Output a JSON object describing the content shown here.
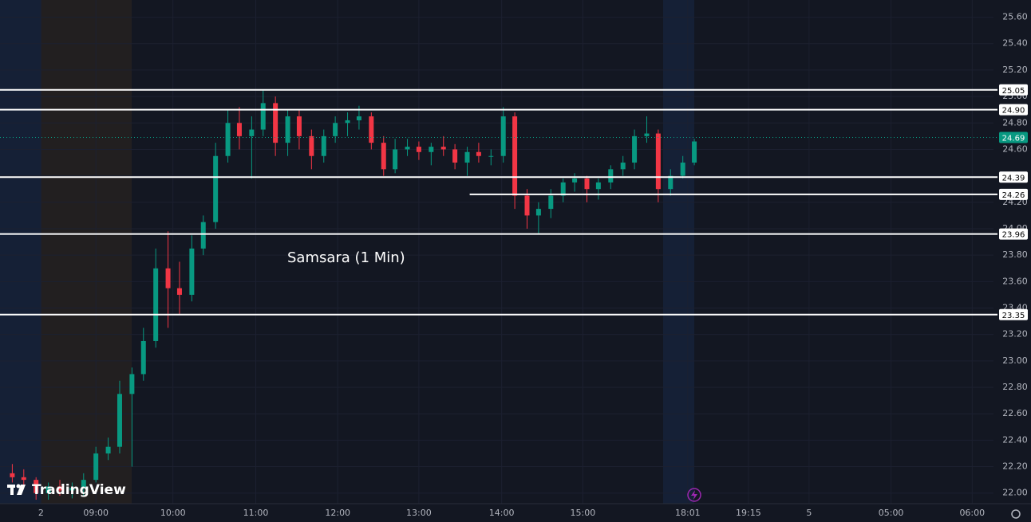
{
  "chart_data": {
    "type": "candlestick",
    "annotation": "Samsara (1 Min)",
    "watermark": "TradingView",
    "colors": {
      "up": "#089981",
      "down": "#f23645"
    },
    "xlim": [
      7.83,
      19.95
    ],
    "xticks": [
      {
        "value": 8.33,
        "label": "2"
      },
      {
        "value": 9,
        "label": "09:00"
      },
      {
        "value": 9.94,
        "label": "10:00"
      },
      {
        "value": 10.95,
        "label": "11:00"
      },
      {
        "value": 11.95,
        "label": "12:00"
      },
      {
        "value": 12.94,
        "label": "13:00"
      },
      {
        "value": 13.95,
        "label": "14:00"
      },
      {
        "value": 14.94,
        "label": "15:00"
      },
      {
        "value": 16.22,
        "label": "18:01"
      },
      {
        "value": 16.96,
        "label": "19:15"
      },
      {
        "value": 17.7,
        "label": "5"
      },
      {
        "value": 18.7,
        "label": "05:00"
      },
      {
        "value": 19.69,
        "label": "06:00"
      }
    ],
    "ylim": [
      21.92,
      25.73
    ],
    "yticks": [
      {
        "value": 22,
        "label": "22.00"
      },
      {
        "value": 22.2,
        "label": "22.20"
      },
      {
        "value": 22.4,
        "label": "22.40"
      },
      {
        "value": 22.6,
        "label": "22.60"
      },
      {
        "value": 22.8,
        "label": "22.80"
      },
      {
        "value": 23,
        "label": "23.00"
      },
      {
        "value": 23.2,
        "label": "23.20"
      },
      {
        "value": 23.4,
        "label": "23.40"
      },
      {
        "value": 23.6,
        "label": "23.60"
      },
      {
        "value": 23.8,
        "label": "23.80"
      },
      {
        "value": 24,
        "label": "24.00"
      },
      {
        "value": 24.2,
        "label": "24.20"
      },
      {
        "value": 24.4,
        "label": "24.40"
      },
      {
        "value": 24.6,
        "label": "24.60"
      },
      {
        "value": 24.8,
        "label": "24.80"
      },
      {
        "value": 25,
        "label": "25.00"
      },
      {
        "value": 25.2,
        "label": "25.20"
      },
      {
        "value": 25.4,
        "label": "25.40"
      },
      {
        "value": 25.6,
        "label": "25.60"
      }
    ],
    "grid": true,
    "levels": [
      {
        "value": 25.05
      },
      {
        "value": 24.9,
        "label": "24.90"
      },
      {
        "value": 24.39
      },
      {
        "value": 24.26,
        "start": 13.56
      },
      {
        "value": 23.96
      },
      {
        "value": 23.35
      }
    ],
    "last_price": 24.69,
    "x": [
      7.98,
      8.12,
      8.27,
      8.42,
      8.56,
      8.71,
      8.85,
      9.0,
      9.15,
      9.29,
      9.44,
      9.58,
      9.73,
      9.88,
      10.02,
      10.17,
      10.31,
      10.46,
      10.61,
      10.75,
      10.9,
      11.04,
      11.19,
      11.34,
      11.48,
      11.63,
      11.78,
      11.92,
      12.07,
      12.21,
      12.36,
      12.51,
      12.65,
      12.8,
      12.94,
      13.09,
      13.24,
      13.38,
      13.53,
      13.67,
      13.82,
      13.97,
      14.11,
      14.26,
      14.4,
      14.55,
      14.7,
      14.84,
      14.99,
      15.13,
      15.28,
      15.43,
      15.57,
      15.72,
      15.86,
      16.01,
      16.16,
      16.3
    ],
    "open": [
      22.15,
      22.12,
      22.1,
      22.0,
      22.05,
      22.02,
      22.04,
      22.1,
      22.3,
      22.35,
      22.75,
      22.9,
      23.15,
      23.7,
      23.55,
      23.5,
      23.85,
      24.05,
      24.55,
      24.8,
      24.7,
      24.75,
      24.95,
      24.65,
      24.85,
      24.7,
      24.55,
      24.7,
      24.8,
      24.82,
      24.85,
      24.65,
      24.45,
      24.6,
      24.62,
      24.58,
      24.62,
      24.6,
      24.5,
      24.58,
      24.55,
      24.55,
      24.85,
      24.25,
      24.1,
      24.15,
      24.25,
      24.35,
      24.38,
      24.3,
      24.35,
      24.45,
      24.5,
      24.7,
      24.72,
      24.3,
      24.4,
      24.5
    ],
    "high": [
      22.22,
      22.18,
      22.12,
      22.08,
      22.1,
      22.08,
      22.15,
      22.35,
      22.42,
      22.85,
      22.95,
      23.25,
      23.85,
      23.98,
      23.75,
      23.95,
      24.1,
      24.65,
      24.9,
      24.92,
      24.85,
      25.05,
      25.0,
      24.9,
      24.9,
      24.75,
      24.75,
      24.85,
      24.88,
      24.93,
      24.88,
      24.7,
      24.68,
      24.68,
      24.66,
      24.65,
      24.7,
      24.64,
      24.62,
      24.65,
      24.6,
      24.92,
      24.88,
      24.3,
      24.2,
      24.3,
      24.38,
      24.42,
      24.4,
      24.38,
      24.48,
      24.55,
      24.75,
      24.85,
      24.75,
      24.45,
      24.55,
      24.68
    ],
    "low": [
      22.08,
      22.05,
      21.95,
      21.95,
      21.98,
      21.96,
      21.98,
      22.08,
      22.25,
      22.3,
      22.2,
      22.85,
      23.1,
      23.25,
      23.35,
      23.45,
      23.8,
      24.0,
      24.5,
      24.6,
      24.38,
      24.7,
      24.55,
      24.55,
      24.6,
      24.45,
      24.5,
      24.65,
      24.7,
      24.75,
      24.6,
      24.4,
      24.42,
      24.55,
      24.52,
      24.48,
      24.55,
      24.45,
      24.4,
      24.5,
      24.48,
      24.5,
      24.15,
      24.0,
      23.96,
      24.08,
      24.2,
      24.28,
      24.2,
      24.22,
      24.3,
      24.4,
      24.45,
      24.65,
      24.2,
      24.25,
      24.38,
      24.48
    ],
    "close": [
      22.12,
      22.1,
      22.0,
      22.05,
      22.02,
      22.04,
      22.1,
      22.3,
      22.35,
      22.75,
      22.9,
      23.15,
      23.7,
      23.55,
      23.5,
      23.85,
      24.05,
      24.55,
      24.8,
      24.7,
      24.75,
      24.95,
      24.65,
      24.85,
      24.7,
      24.55,
      24.7,
      24.8,
      24.82,
      24.85,
      24.65,
      24.45,
      24.6,
      24.62,
      24.58,
      24.62,
      24.6,
      24.5,
      24.58,
      24.55,
      24.55,
      24.85,
      24.25,
      24.1,
      24.15,
      24.25,
      24.35,
      24.38,
      24.3,
      24.35,
      24.45,
      24.5,
      24.7,
      24.72,
      24.3,
      24.4,
      24.5,
      24.66
    ]
  }
}
